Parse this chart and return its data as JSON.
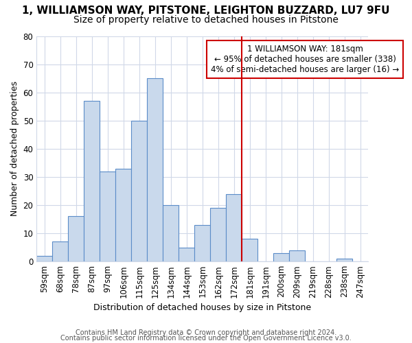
{
  "title1": "1, WILLIAMSON WAY, PITSTONE, LEIGHTON BUZZARD, LU7 9FU",
  "title2": "Size of property relative to detached houses in Pitstone",
  "xlabel": "Distribution of detached houses by size in Pitstone",
  "ylabel": "Number of detached properties",
  "categories": [
    "59sqm",
    "68sqm",
    "78sqm",
    "87sqm",
    "97sqm",
    "106sqm",
    "115sqm",
    "125sqm",
    "134sqm",
    "144sqm",
    "153sqm",
    "162sqm",
    "172sqm",
    "181sqm",
    "191sqm",
    "200sqm",
    "209sqm",
    "219sqm",
    "228sqm",
    "238sqm",
    "247sqm"
  ],
  "values": [
    2,
    7,
    16,
    57,
    32,
    33,
    50,
    65,
    20,
    5,
    13,
    19,
    24,
    8,
    0,
    3,
    4,
    0,
    0,
    1,
    0
  ],
  "bar_color": "#c9d9ec",
  "bar_edge_color": "#5b8cc8",
  "vline_x": 12.5,
  "vline_color": "#cc0000",
  "annotation_text": "1 WILLIAMSON WAY: 181sqm\n← 95% of detached houses are smaller (338)\n4% of semi-detached houses are larger (16) →",
  "annotation_box_facecolor": "#ffffff",
  "annotation_box_edgecolor": "#cc0000",
  "ylim": [
    0,
    80
  ],
  "yticks": [
    0,
    10,
    20,
    30,
    40,
    50,
    60,
    70,
    80
  ],
  "footer1": "Contains HM Land Registry data © Crown copyright and database right 2024.",
  "footer2": "Contains public sector information licensed under the Open Government Licence v3.0.",
  "bg_color": "#ffffff",
  "plot_bg_color": "#ffffff",
  "grid_color": "#d0d8e8",
  "title1_fontsize": 11,
  "title2_fontsize": 10,
  "xlabel_fontsize": 9,
  "ylabel_fontsize": 9,
  "tick_fontsize": 8.5,
  "footer_fontsize": 7
}
